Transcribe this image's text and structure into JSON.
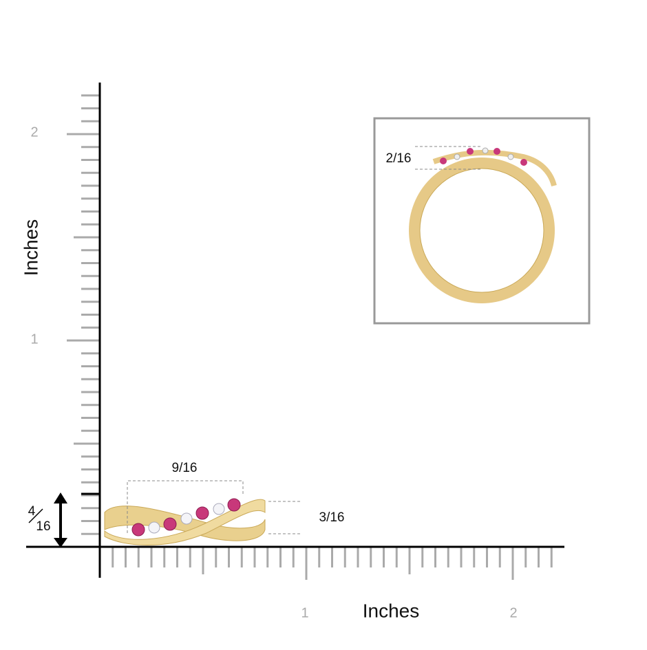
{
  "ruler": {
    "y_labels": [
      "2",
      "1"
    ],
    "y_title": "Inches",
    "x_labels": [
      "1",
      "2"
    ],
    "x_title": "Inches"
  },
  "dimensions": {
    "length": "9/16",
    "height": "3/16",
    "profile": "2/16",
    "side_top": "4",
    "side_bottom": "16"
  }
}
